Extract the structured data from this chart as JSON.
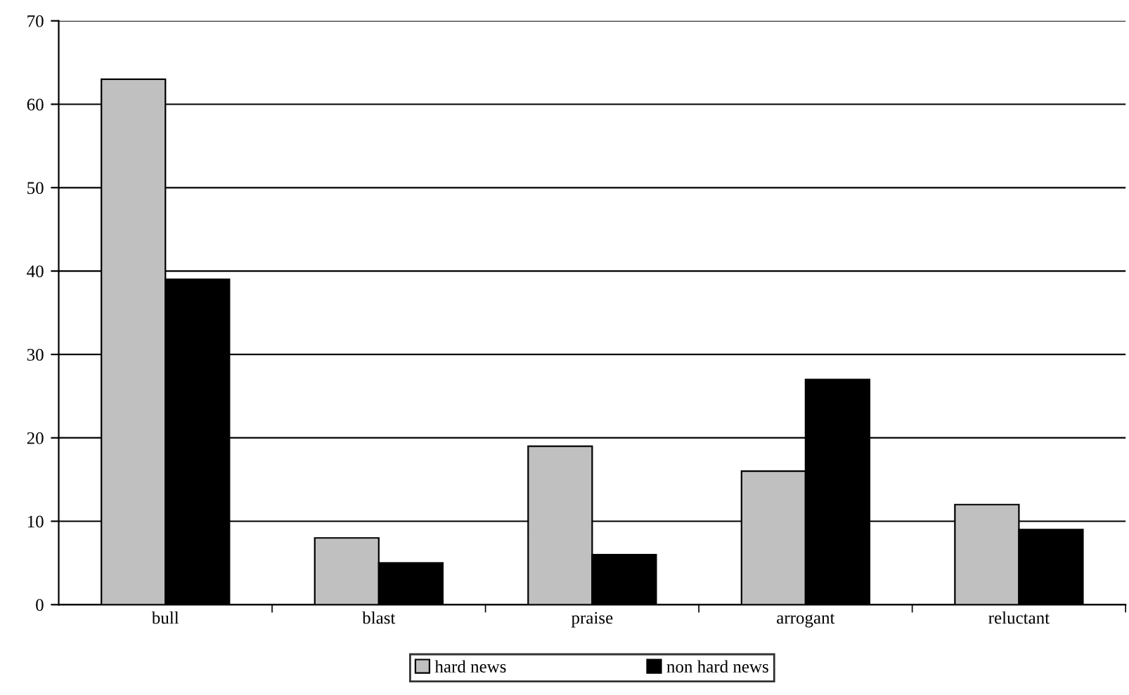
{
  "chart_data": {
    "type": "bar",
    "categories": [
      "bull",
      "blast",
      "praise",
      "arrogant",
      "reluctant"
    ],
    "series": [
      {
        "name": "hard news",
        "color": "#c0c0c0",
        "values": [
          63,
          8,
          19,
          16,
          12
        ]
      },
      {
        "name": "non hard news",
        "color": "#000000",
        "values": [
          39,
          5,
          6,
          27,
          9
        ]
      }
    ],
    "ylim": [
      0,
      70
    ],
    "yticks": [
      0,
      10,
      20,
      30,
      40,
      50,
      60,
      70
    ],
    "grid": "y",
    "legend": "bottom"
  }
}
